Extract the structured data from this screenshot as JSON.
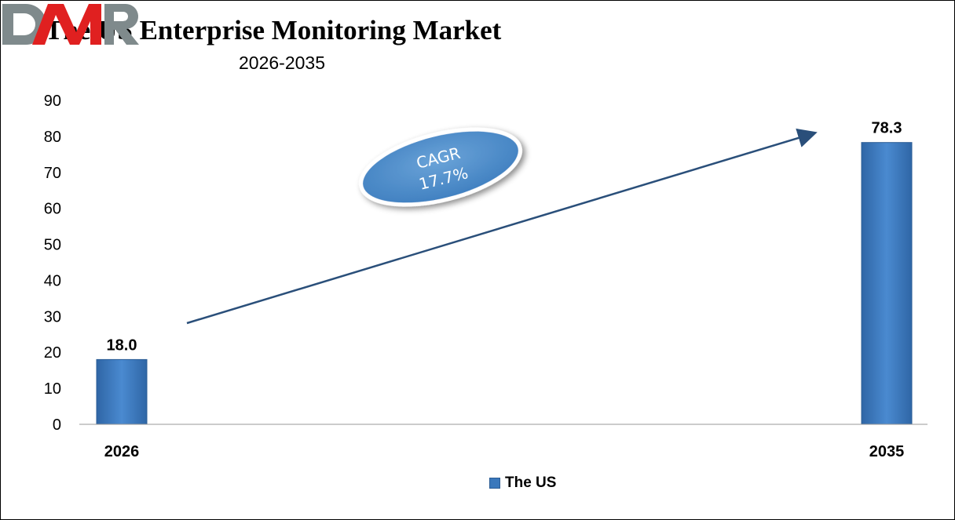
{
  "title": "The US Enterprise Monitoring Market",
  "subtitle": "2026-2035",
  "chart_data": {
    "type": "bar",
    "categories": [
      "2026",
      "2035"
    ],
    "series": [
      {
        "name": "The US",
        "values": [
          18.0,
          78.3
        ],
        "color": "#3a78bc"
      }
    ],
    "data_labels": [
      "18.0",
      "78.3"
    ],
    "ylim": [
      0,
      90
    ],
    "yticks": [
      0,
      10,
      20,
      30,
      40,
      50,
      60,
      70,
      80,
      90
    ],
    "grid": false,
    "legend": "bottom",
    "annotation": {
      "line1": "CAGR",
      "line2": "17.7%"
    }
  },
  "logo": {
    "text": "DMR",
    "colors": [
      "#7f8a8c",
      "#e02020"
    ]
  }
}
